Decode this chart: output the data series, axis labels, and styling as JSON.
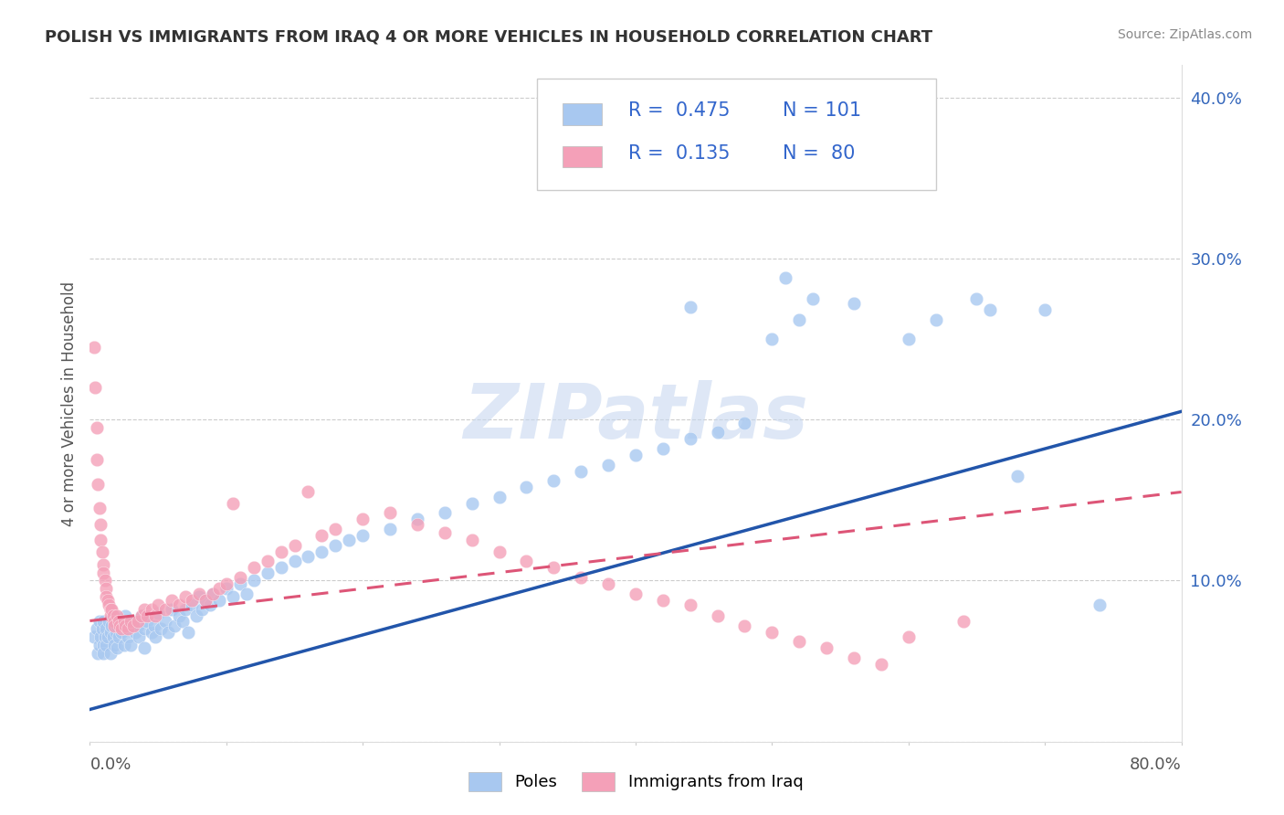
{
  "title": "POLISH VS IMMIGRANTS FROM IRAQ 4 OR MORE VEHICLES IN HOUSEHOLD CORRELATION CHART",
  "source": "Source: ZipAtlas.com",
  "ylabel": "4 or more Vehicles in Household",
  "xmin": 0.0,
  "xmax": 0.8,
  "ymin": 0.0,
  "ymax": 0.42,
  "blue_R": 0.475,
  "blue_N": 101,
  "pink_R": 0.135,
  "pink_N": 80,
  "blue_color": "#a8c8f0",
  "blue_line_color": "#2255aa",
  "pink_color": "#f4a0b8",
  "pink_line_color": "#dd5577",
  "watermark": "ZIPatlas",
  "watermark_color": "#c8d8f0",
  "legend_label_blue": "Poles",
  "legend_label_pink": "Immigrants from Iraq",
  "blue_trend_x": [
    0.0,
    0.8
  ],
  "blue_trend_y": [
    0.02,
    0.205
  ],
  "pink_trend_x": [
    0.0,
    0.8
  ],
  "pink_trend_y": [
    0.075,
    0.155
  ],
  "blue_dots": [
    [
      0.003,
      0.065
    ],
    [
      0.005,
      0.07
    ],
    [
      0.006,
      0.055
    ],
    [
      0.007,
      0.06
    ],
    [
      0.007,
      0.075
    ],
    [
      0.008,
      0.065
    ],
    [
      0.009,
      0.07
    ],
    [
      0.01,
      0.06
    ],
    [
      0.01,
      0.075
    ],
    [
      0.01,
      0.055
    ],
    [
      0.011,
      0.065
    ],
    [
      0.012,
      0.07
    ],
    [
      0.012,
      0.06
    ],
    [
      0.013,
      0.065
    ],
    [
      0.014,
      0.075
    ],
    [
      0.015,
      0.068
    ],
    [
      0.015,
      0.055
    ],
    [
      0.016,
      0.072
    ],
    [
      0.017,
      0.065
    ],
    [
      0.018,
      0.078
    ],
    [
      0.018,
      0.06
    ],
    [
      0.019,
      0.068
    ],
    [
      0.02,
      0.072
    ],
    [
      0.02,
      0.058
    ],
    [
      0.021,
      0.065
    ],
    [
      0.022,
      0.075
    ],
    [
      0.023,
      0.068
    ],
    [
      0.024,
      0.072
    ],
    [
      0.025,
      0.06
    ],
    [
      0.026,
      0.078
    ],
    [
      0.027,
      0.07
    ],
    [
      0.028,
      0.065
    ],
    [
      0.03,
      0.072
    ],
    [
      0.03,
      0.06
    ],
    [
      0.032,
      0.075
    ],
    [
      0.033,
      0.068
    ],
    [
      0.035,
      0.072
    ],
    [
      0.036,
      0.065
    ],
    [
      0.038,
      0.078
    ],
    [
      0.04,
      0.07
    ],
    [
      0.04,
      0.058
    ],
    [
      0.042,
      0.075
    ],
    [
      0.045,
      0.068
    ],
    [
      0.047,
      0.072
    ],
    [
      0.048,
      0.065
    ],
    [
      0.05,
      0.08
    ],
    [
      0.052,
      0.07
    ],
    [
      0.055,
      0.075
    ],
    [
      0.057,
      0.068
    ],
    [
      0.06,
      0.082
    ],
    [
      0.062,
      0.072
    ],
    [
      0.065,
      0.078
    ],
    [
      0.068,
      0.075
    ],
    [
      0.07,
      0.082
    ],
    [
      0.072,
      0.068
    ],
    [
      0.075,
      0.085
    ],
    [
      0.078,
      0.078
    ],
    [
      0.08,
      0.09
    ],
    [
      0.082,
      0.082
    ],
    [
      0.085,
      0.088
    ],
    [
      0.088,
      0.085
    ],
    [
      0.09,
      0.092
    ],
    [
      0.095,
      0.088
    ],
    [
      0.1,
      0.095
    ],
    [
      0.105,
      0.09
    ],
    [
      0.11,
      0.098
    ],
    [
      0.115,
      0.092
    ],
    [
      0.12,
      0.1
    ],
    [
      0.13,
      0.105
    ],
    [
      0.14,
      0.108
    ],
    [
      0.15,
      0.112
    ],
    [
      0.16,
      0.115
    ],
    [
      0.17,
      0.118
    ],
    [
      0.18,
      0.122
    ],
    [
      0.19,
      0.125
    ],
    [
      0.2,
      0.128
    ],
    [
      0.22,
      0.132
    ],
    [
      0.24,
      0.138
    ],
    [
      0.26,
      0.142
    ],
    [
      0.28,
      0.148
    ],
    [
      0.3,
      0.152
    ],
    [
      0.32,
      0.158
    ],
    [
      0.34,
      0.162
    ],
    [
      0.36,
      0.168
    ],
    [
      0.38,
      0.172
    ],
    [
      0.4,
      0.178
    ],
    [
      0.42,
      0.182
    ],
    [
      0.44,
      0.188
    ],
    [
      0.46,
      0.192
    ],
    [
      0.48,
      0.198
    ],
    [
      0.44,
      0.27
    ],
    [
      0.5,
      0.25
    ],
    [
      0.51,
      0.288
    ],
    [
      0.52,
      0.262
    ],
    [
      0.53,
      0.275
    ],
    [
      0.56,
      0.272
    ],
    [
      0.6,
      0.25
    ],
    [
      0.62,
      0.262
    ],
    [
      0.65,
      0.275
    ],
    [
      0.66,
      0.268
    ],
    [
      0.7,
      0.268
    ],
    [
      0.74,
      0.085
    ],
    [
      0.68,
      0.165
    ]
  ],
  "pink_dots": [
    [
      0.003,
      0.245
    ],
    [
      0.004,
      0.22
    ],
    [
      0.005,
      0.195
    ],
    [
      0.005,
      0.175
    ],
    [
      0.006,
      0.16
    ],
    [
      0.007,
      0.145
    ],
    [
      0.008,
      0.135
    ],
    [
      0.008,
      0.125
    ],
    [
      0.009,
      0.118
    ],
    [
      0.01,
      0.11
    ],
    [
      0.01,
      0.105
    ],
    [
      0.011,
      0.1
    ],
    [
      0.012,
      0.095
    ],
    [
      0.012,
      0.09
    ],
    [
      0.013,
      0.088
    ],
    [
      0.014,
      0.085
    ],
    [
      0.015,
      0.082
    ],
    [
      0.015,
      0.078
    ],
    [
      0.016,
      0.082
    ],
    [
      0.017,
      0.078
    ],
    [
      0.018,
      0.075
    ],
    [
      0.018,
      0.072
    ],
    [
      0.02,
      0.078
    ],
    [
      0.021,
      0.075
    ],
    [
      0.022,
      0.072
    ],
    [
      0.023,
      0.07
    ],
    [
      0.025,
      0.075
    ],
    [
      0.026,
      0.072
    ],
    [
      0.028,
      0.07
    ],
    [
      0.03,
      0.075
    ],
    [
      0.032,
      0.072
    ],
    [
      0.035,
      0.075
    ],
    [
      0.038,
      0.078
    ],
    [
      0.04,
      0.082
    ],
    [
      0.042,
      0.078
    ],
    [
      0.045,
      0.082
    ],
    [
      0.048,
      0.078
    ],
    [
      0.05,
      0.085
    ],
    [
      0.055,
      0.082
    ],
    [
      0.06,
      0.088
    ],
    [
      0.065,
      0.085
    ],
    [
      0.07,
      0.09
    ],
    [
      0.075,
      0.088
    ],
    [
      0.08,
      0.092
    ],
    [
      0.085,
      0.088
    ],
    [
      0.09,
      0.092
    ],
    [
      0.095,
      0.095
    ],
    [
      0.1,
      0.098
    ],
    [
      0.105,
      0.148
    ],
    [
      0.11,
      0.102
    ],
    [
      0.12,
      0.108
    ],
    [
      0.13,
      0.112
    ],
    [
      0.14,
      0.118
    ],
    [
      0.15,
      0.122
    ],
    [
      0.16,
      0.155
    ],
    [
      0.17,
      0.128
    ],
    [
      0.18,
      0.132
    ],
    [
      0.2,
      0.138
    ],
    [
      0.22,
      0.142
    ],
    [
      0.24,
      0.135
    ],
    [
      0.26,
      0.13
    ],
    [
      0.28,
      0.125
    ],
    [
      0.3,
      0.118
    ],
    [
      0.32,
      0.112
    ],
    [
      0.34,
      0.108
    ],
    [
      0.36,
      0.102
    ],
    [
      0.38,
      0.098
    ],
    [
      0.4,
      0.092
    ],
    [
      0.42,
      0.088
    ],
    [
      0.44,
      0.085
    ],
    [
      0.46,
      0.078
    ],
    [
      0.48,
      0.072
    ],
    [
      0.5,
      0.068
    ],
    [
      0.52,
      0.062
    ],
    [
      0.54,
      0.058
    ],
    [
      0.56,
      0.052
    ],
    [
      0.58,
      0.048
    ],
    [
      0.6,
      0.065
    ],
    [
      0.64,
      0.075
    ]
  ]
}
